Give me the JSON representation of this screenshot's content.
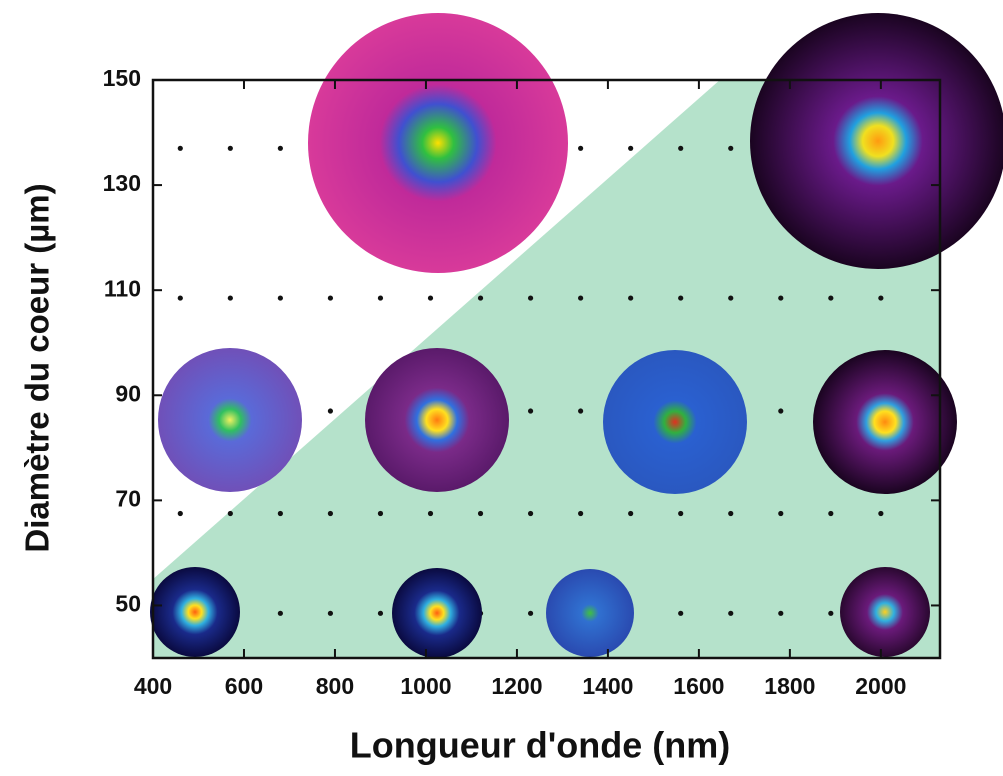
{
  "chart_data": {
    "type": "dotgrid",
    "xlabel": "Longueur d'onde (nm)",
    "ylabel": "Diamètre du coeur (µm)",
    "xlim": [
      400,
      2130
    ],
    "ylim": [
      40,
      150
    ],
    "xticks": [
      400,
      600,
      800,
      1000,
      1200,
      1400,
      1600,
      1800,
      2000
    ],
    "yticks": [
      50,
      70,
      90,
      110,
      130,
      150
    ],
    "dot_x": [
      460,
      570,
      680,
      790,
      900,
      1010,
      1120,
      1230,
      1340,
      1450,
      1560,
      1670,
      1780,
      1890,
      2000
    ],
    "dot_y": [
      137,
      108.5,
      87,
      67.5,
      48.5
    ],
    "dot_color": "#111111",
    "region": {
      "x": [
        400,
        1646,
        2130,
        2130,
        400
      ],
      "y": [
        55,
        150,
        150,
        40,
        40
      ],
      "color": "#b5e2cb"
    }
  }
}
